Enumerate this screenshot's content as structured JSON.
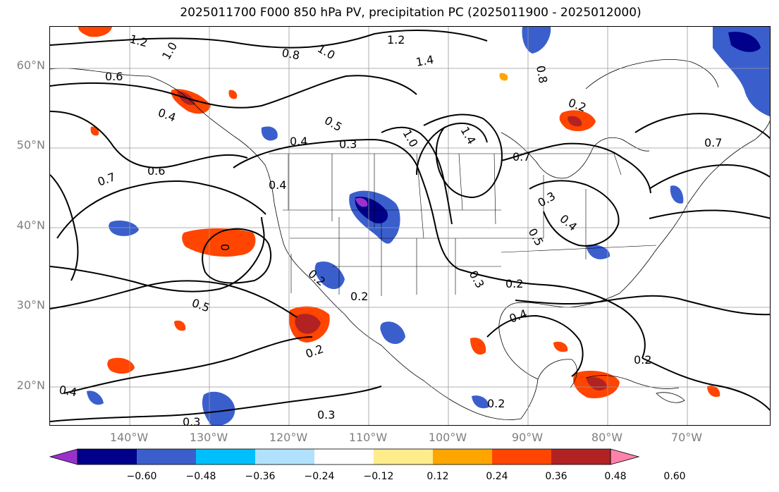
{
  "title": "2025011700 F000 850 hPa PV, precipitation PC (2025011900 - 2025012000)",
  "lat_labels": [
    "60°N",
    "50°N",
    "40°N",
    "30°N",
    "20°N"
  ],
  "lon_labels": [
    "140°W",
    "130°W",
    "120°W",
    "110°W",
    "100°W",
    "90°W",
    "80°W",
    "70°W"
  ],
  "colorbar": {
    "colors": [
      "#9932cc",
      "#00008b",
      "#3a5fcd",
      "#00bfff",
      "#b0e2ff",
      "#ffffff",
      "#ffec8b",
      "#ffa500",
      "#ff4500",
      "#b22222",
      "#ff82ab"
    ],
    "ticks": [
      "−0.60",
      "−0.48",
      "−0.36",
      "−0.24",
      "−0.12",
      "0.12",
      "0.24",
      "0.36",
      "0.48",
      "0.60"
    ]
  },
  "contour_labels": [
    "1.2",
    "1.2",
    "1.0",
    "0.8",
    "1.0",
    "1.4",
    "0.6",
    "0.4",
    "0.5",
    "1.0",
    "1.4",
    "0.8",
    "0.2",
    "0.4",
    "0.3",
    "0.7",
    "0.6",
    "0.7",
    "0.4",
    "0.7",
    "0.3",
    "0.5",
    "0.4",
    "0",
    "0.2",
    "0.3",
    "0.2",
    "0.4",
    "0.5",
    "0.4",
    "0.2",
    "0.2",
    "0.3",
    "0.3",
    "0.2",
    "0.2"
  ]
}
